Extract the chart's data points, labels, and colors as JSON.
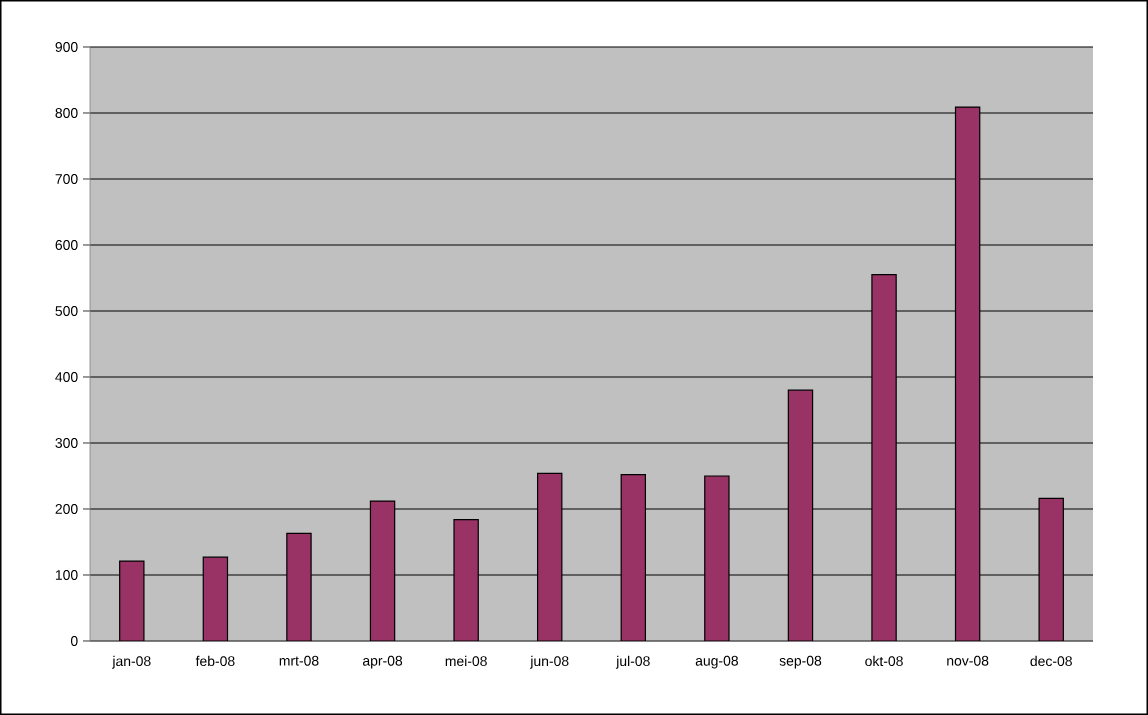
{
  "chart_data": {
    "type": "bar",
    "categories": [
      "jan-08",
      "feb-08",
      "mrt-08",
      "apr-08",
      "mei-08",
      "jun-08",
      "jul-08",
      "aug-08",
      "sep-08",
      "okt-08",
      "nov-08",
      "dec-08"
    ],
    "values": [
      121,
      127,
      163,
      212,
      184,
      254,
      252,
      250,
      380,
      555,
      809,
      216
    ],
    "color": "#993366",
    "ylim": [
      0,
      900
    ],
    "yticks": [
      0,
      100,
      200,
      300,
      400,
      500,
      600,
      700,
      800,
      900
    ],
    "grid": "y"
  }
}
